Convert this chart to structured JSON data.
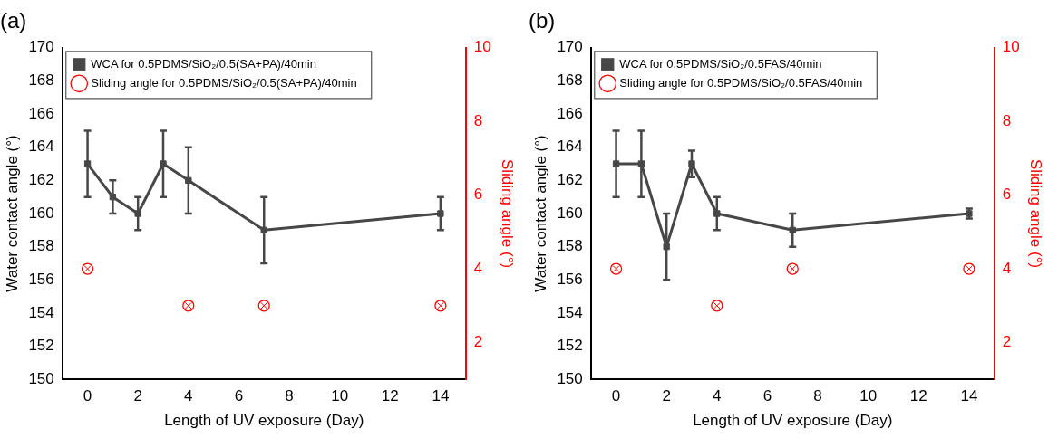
{
  "chart_data": [
    {
      "type": "line",
      "title": "(a)",
      "xlabel": "Length of UV exposure (Day)",
      "ylabel": "Water contact angle (°)",
      "y2label": "Sliding angle (°)",
      "xlim": [
        -1,
        15
      ],
      "xticks": [
        0,
        2,
        4,
        6,
        8,
        10,
        12,
        14
      ],
      "ylim": [
        150,
        170
      ],
      "yticks": [
        150,
        152,
        154,
        156,
        158,
        160,
        162,
        164,
        166,
        168,
        170
      ],
      "y2lim": [
        1,
        10
      ],
      "y2ticks": [
        2,
        4,
        6,
        8,
        10
      ],
      "grid": false,
      "legend": "top left",
      "series": [
        {
          "name": "WCA for 0.5PDMS/SiO₂/0.5(SA+PA)/40min",
          "marker": "square",
          "color": "#474747",
          "x": [
            0,
            1,
            2,
            3,
            4,
            7,
            14
          ],
          "values": [
            163,
            161,
            160,
            163,
            162,
            159,
            160
          ],
          "errors": [
            2,
            1,
            1,
            2,
            2,
            2,
            1
          ]
        },
        {
          "name": "Sliding angle for 0.5PDMS/SiO₂/0.5(SA+PA)/40min",
          "type": "scatter",
          "axis": "y2",
          "color": "#ff0000",
          "x": [
            0,
            4,
            7,
            14
          ],
          "values": [
            4,
            3,
            3,
            3
          ]
        }
      ]
    },
    {
      "type": "line",
      "title": "(b)",
      "xlabel": "Length of UV exposure (Day)",
      "ylabel": "Water contact angle (°)",
      "y2label": "Sliding angle (°)",
      "xlim": [
        -1,
        15
      ],
      "xticks": [
        0,
        2,
        4,
        6,
        8,
        10,
        12,
        14
      ],
      "ylim": [
        150,
        170
      ],
      "yticks": [
        150,
        152,
        154,
        156,
        158,
        160,
        162,
        164,
        166,
        168,
        170
      ],
      "y2lim": [
        1,
        10
      ],
      "y2ticks": [
        2,
        4,
        6,
        8,
        10
      ],
      "grid": false,
      "legend": "top left",
      "series": [
        {
          "name": "WCA for 0.5PDMS/SiO₂/0.5FAS/40min",
          "marker": "square",
          "color": "#474747",
          "x": [
            0,
            1,
            2,
            3,
            4,
            7,
            14
          ],
          "values": [
            163,
            163,
            158,
            163,
            160,
            159,
            160
          ],
          "errors": [
            2,
            2,
            2,
            0.8,
            1,
            1,
            0.3
          ]
        },
        {
          "name": "Sliding angle for 0.5PDMS/SiO₂/0.5FAS/40min",
          "type": "scatter",
          "axis": "y2",
          "color": "#ff0000",
          "x": [
            0,
            4,
            7,
            14
          ],
          "values": [
            4,
            3,
            4,
            4
          ]
        }
      ]
    }
  ]
}
